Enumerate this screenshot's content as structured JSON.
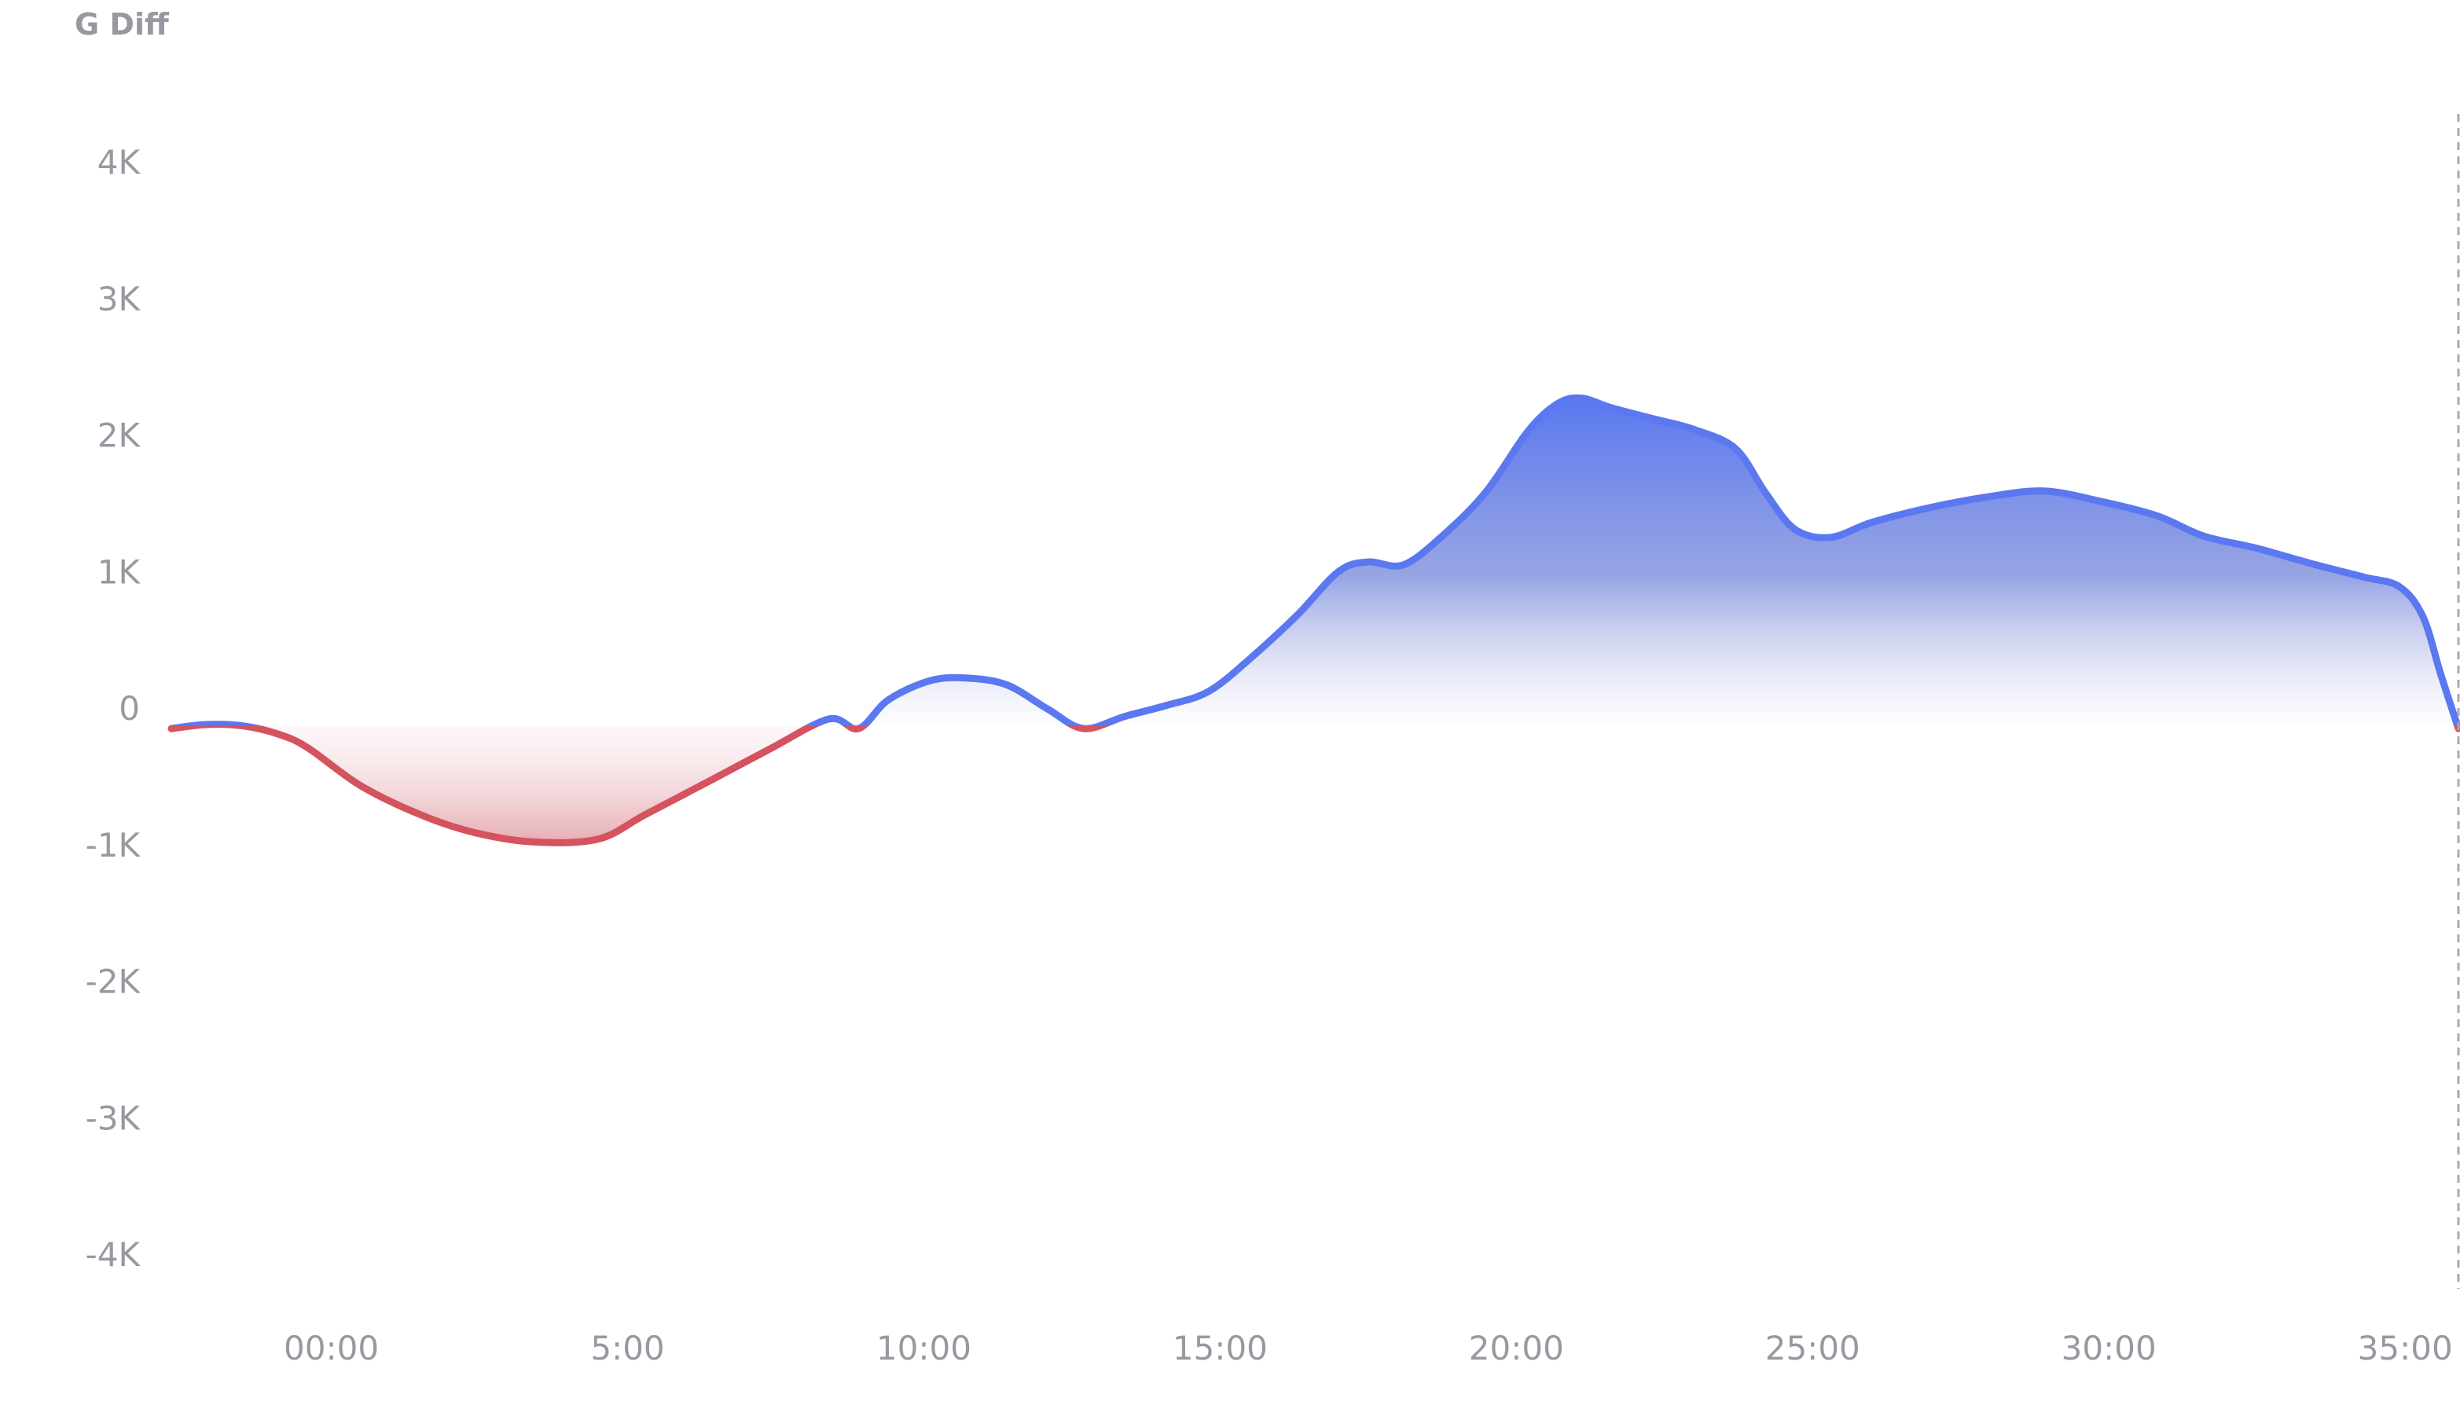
{
  "chart_data": {
    "type": "area",
    "title": "G Diff",
    "xlabel": "",
    "ylabel": "",
    "x_ticks": [
      "00:00",
      "5:00",
      "10:00",
      "15:00",
      "20:00",
      "25:00",
      "30:00",
      "35:00"
    ],
    "x_tick_minutes": [
      0,
      5,
      10,
      15,
      20,
      25,
      30,
      35
    ],
    "xlim": [
      -2.7,
      35.9
    ],
    "y_ticks": [
      "4K",
      "3K",
      "2K",
      "1K",
      "0",
      "-1K",
      "-2K",
      "-3K",
      "-4K"
    ],
    "y_tick_values": [
      4000,
      3000,
      2000,
      1000,
      0,
      -1000,
      -2000,
      -3000,
      -4000
    ],
    "ylim": [
      -4000,
      4000
    ],
    "grid": false,
    "series": [
      {
        "x": [
          -2.7,
          -2.1,
          -1.5,
          -0.9,
          -0.4,
          0.5,
          1.5,
          2.4,
          3.4,
          4.5,
          5.3,
          6.4,
          7.4,
          8.4,
          8.9,
          9.4,
          10.1,
          10.7,
          11.4,
          12.1,
          12.7,
          13.4,
          14.1,
          14.8,
          15.5,
          16.3,
          17.0,
          17.5,
          18.1,
          18.8,
          19.5,
          20.2,
          20.7,
          21.1,
          21.6,
          22.3,
          23.0,
          23.7,
          24.2,
          24.7,
          25.3,
          26.0,
          27.0,
          28.0,
          28.9,
          29.8,
          30.8,
          31.6,
          32.5,
          33.4,
          34.3,
          34.9,
          35.3,
          35.6,
          35.9
        ],
        "y": [
          -150,
          -120,
          -130,
          -190,
          -290,
          -570,
          -780,
          -910,
          -980,
          -960,
          -780,
          -530,
          -300,
          -80,
          -150,
          60,
          200,
          220,
          170,
          -10,
          -150,
          -60,
          20,
          120,
          360,
          680,
          1000,
          1070,
          1050,
          1280,
          1590,
          2030,
          2230,
          2270,
          2200,
          2120,
          2040,
          1900,
          1580,
          1310,
          1250,
          1360,
          1470,
          1550,
          1590,
          1520,
          1410,
          1260,
          1170,
          1060,
          960,
          890,
          670,
          250,
          -150
        ]
      }
    ],
    "colors": {
      "positive": "#5b78f0",
      "negative": "#d4535e",
      "axis_text": "#9a97a0",
      "cursor_line": "#aaaaaa"
    }
  }
}
